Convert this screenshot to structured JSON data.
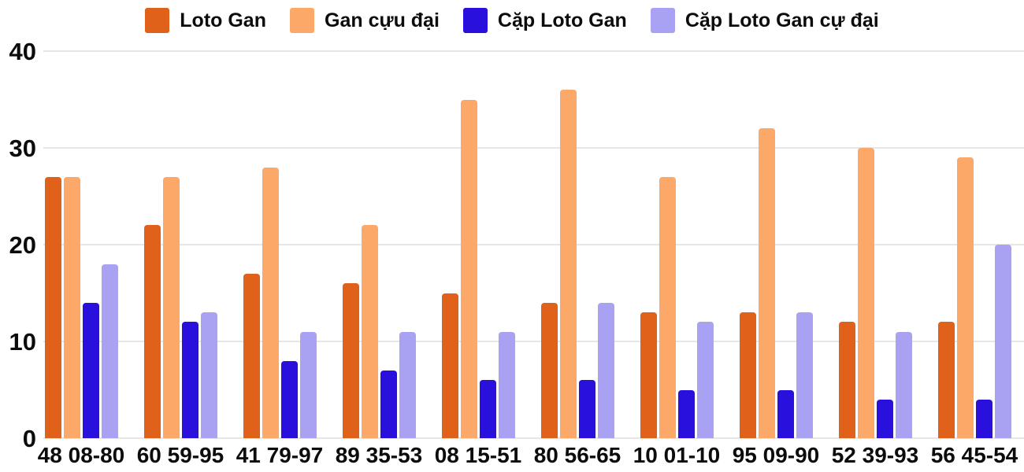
{
  "chart_data": {
    "type": "bar",
    "title": "",
    "xlabel": "",
    "ylabel": "",
    "categories": [
      "48 08-80",
      "60 59-95",
      "41 79-97",
      "89 35-53",
      "08 15-51",
      "80 56-65",
      "10 01-10",
      "95 09-90",
      "52 39-93",
      "56 45-54"
    ],
    "series": [
      {
        "name": "Loto Gan",
        "color": "#e0621a",
        "values": [
          27,
          22,
          17,
          16,
          15,
          14,
          13,
          13,
          12,
          12
        ]
      },
      {
        "name": "Gan cựu đại",
        "color": "#fca869",
        "values": [
          27,
          27,
          28,
          22,
          35,
          36,
          27,
          32,
          30,
          29
        ]
      },
      {
        "name": "Cặp Loto Gan",
        "color": "#2a10dc",
        "values": [
          14,
          12,
          8,
          7,
          6,
          6,
          5,
          5,
          4,
          4
        ]
      },
      {
        "name": "Cặp Loto Gan cự đại",
        "color": "#a9a2f3",
        "values": [
          18,
          13,
          11,
          11,
          11,
          14,
          12,
          13,
          11,
          20
        ]
      }
    ],
    "ylim": [
      0,
      40
    ],
    "yticks": [
      0,
      10,
      20,
      30,
      40
    ],
    "grid": true,
    "legend_position": "top",
    "colors": {
      "background": "#ffffff",
      "gridline": "#e6e6e6",
      "text": "#0c0c0c"
    }
  }
}
